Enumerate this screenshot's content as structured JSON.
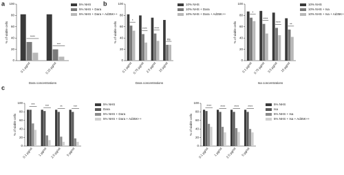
{
  "chart_data": [
    {
      "type": "bar",
      "label": "a",
      "ylabel": "% of viable cells",
      "xlabel": "Dara concentrations",
      "categories": [
        "0.1 µg/ml",
        "0.15 µg/ml"
      ],
      "series": [
        {
          "name": "5% NHS",
          "color": "#3a3a3a",
          "values": [
            82,
            82
          ]
        },
        {
          "name": "5% NHS + Dara",
          "color": "#7a7a7a",
          "values": [
            33,
            20
          ]
        },
        {
          "name": "5% NHS + Dara + Ad35K++",
          "color": "#b8b8b8",
          "values": [
            14,
            7
          ]
        }
      ],
      "annotations": [
        "****",
        "***"
      ],
      "ylim": [
        0,
        100
      ],
      "yticks": [
        0,
        20,
        40,
        60,
        80,
        100
      ]
    },
    {
      "type": "bar",
      "label": "b",
      "ylabel": "% of viable cells",
      "xlabel": "Dara concentrations",
      "categories": [
        "0.1 µg/ml",
        "0.75 µg/ml",
        "2.5 µg/ml",
        "15 µg/ml"
      ],
      "series": [
        {
          "name": "10% NHS",
          "color": "#3a3a3a",
          "values": [
            82,
            80,
            76,
            72
          ]
        },
        {
          "name": "10% NHS + Dara",
          "color": "#7a7a7a",
          "values": [
            62,
            47,
            48,
            28
          ]
        },
        {
          "name": "10% NHS + Dara + Ad35K++",
          "color": "#b8b8b8",
          "values": [
            53,
            32,
            35,
            28
          ]
        }
      ],
      "annotations": [
        "*",
        "****",
        "****",
        "ns"
      ],
      "ylim": [
        0,
        100
      ],
      "yticks": [
        0,
        20,
        40,
        60,
        80,
        100
      ]
    },
    {
      "type": "bar",
      "ylabel": "% of viable cells",
      "xlabel": "Isa concentrations",
      "categories": [
        "0.1 µg/ml",
        "0.75 µg/ml",
        "3.5 µg/ml",
        "15 µg/ml"
      ],
      "series": [
        {
          "name": "10% NHS",
          "color": "#3a3a3a",
          "values": [
            87,
            88,
            85,
            75
          ]
        },
        {
          "name": "10% NHS + Isa",
          "color": "#7a7a7a",
          "values": [
            76,
            65,
            58,
            55
          ]
        },
        {
          "name": "10% NHS + Isa + Ad35K++",
          "color": "#b8b8b8",
          "values": [
            70,
            48,
            45,
            42
          ]
        }
      ],
      "annotations": [
        "*",
        "****",
        "****",
        "**"
      ],
      "ylim": [
        0,
        100
      ],
      "yticks": [
        0,
        20,
        40,
        60,
        80,
        100
      ]
    },
    {
      "type": "bar",
      "label": "c",
      "ylabel": "% of viable cells",
      "categories": [
        "0.1 µg/ml",
        "1 µg/ml",
        "2.5 µg/ml",
        "5 µg/ml"
      ],
      "series": [
        {
          "name": "5% NHS",
          "color": "#3a3a3a",
          "values": [
            85,
            85,
            85,
            85
          ]
        },
        {
          "name": "Dara",
          "color": "#5a5a5a",
          "values": [
            85,
            82,
            80,
            80
          ]
        },
        {
          "name": "5% NHS + Dara",
          "color": "#8c8c8c",
          "values": [
            53,
            25,
            22,
            18
          ]
        },
        {
          "name": "5% NHS + Dara + Ad35K++",
          "color": "#cfcfcf",
          "values": [
            38,
            14,
            10,
            10
          ]
        }
      ],
      "annotations": [
        "***",
        "***",
        "**",
        "***"
      ],
      "ylim": [
        0,
        100
      ],
      "yticks": [
        0,
        20,
        40,
        60,
        80,
        100
      ]
    },
    {
      "type": "bar",
      "ylabel": "% of viable cells",
      "categories": [
        "0.1 µg/ml",
        "1 µg/ml",
        "2.5 µg/ml",
        "5 µg/ml"
      ],
      "series": [
        {
          "name": "5% NHS",
          "color": "#3a3a3a",
          "values": [
            85,
            85,
            85,
            85
          ]
        },
        {
          "name": "Isa",
          "color": "#5a5a5a",
          "values": [
            82,
            80,
            80,
            80
          ]
        },
        {
          "name": "5% NHS + Isa",
          "color": "#8c8c8c",
          "values": [
            52,
            45,
            42,
            40
          ]
        },
        {
          "name": "5% NHS + Isa + Ad35K++",
          "color": "#cfcfcf",
          "values": [
            45,
            32,
            33,
            32
          ]
        }
      ],
      "annotations": [
        "****",
        "****",
        "****",
        "****"
      ],
      "ylim": [
        0,
        100
      ],
      "yticks": [
        0,
        20,
        40,
        60,
        80,
        100
      ]
    }
  ]
}
